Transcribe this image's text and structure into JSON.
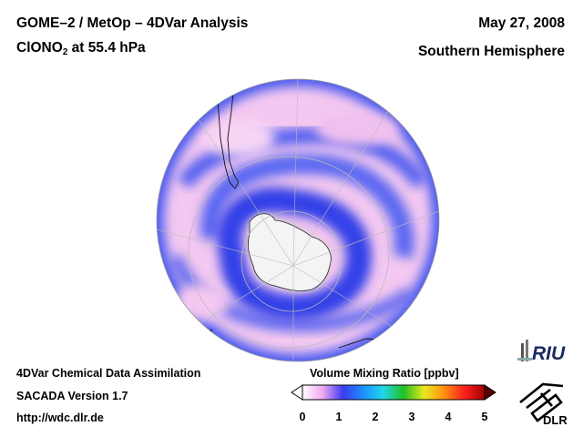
{
  "header": {
    "title_line1": "GOME–2 / MetOp – 4DVar Analysis",
    "species_main": "ClONO",
    "species_sub": "2",
    "species_rest": " at 55.4 hPa",
    "date": "May 27, 2008",
    "region": "Southern Hemisphere"
  },
  "footer": {
    "line1": "4DVar Chemical Data Assimilation",
    "line2": "SACADA Version 1.7",
    "line3": "http://wdc.dlr.de"
  },
  "colorbar": {
    "title": "Volume Mixing Ratio [ppbv]",
    "ticks": [
      "0",
      "1",
      "2",
      "3",
      "4",
      "5"
    ],
    "min": 0,
    "max": 5,
    "colors": [
      "#ffffff",
      "#f0a8f0",
      "#3a3af0",
      "#1e90ff",
      "#20d8e8",
      "#20c020",
      "#e8e820",
      "#ff9010",
      "#ff2020",
      "#a00000"
    ]
  },
  "map": {
    "projection": "orthographic-south-pole",
    "background_color": "#f4c8f0",
    "low_color": "#4050f0",
    "land_color": "#f2f2f2"
  },
  "logos": {
    "riu": "RIU",
    "dlr": "DLR"
  }
}
